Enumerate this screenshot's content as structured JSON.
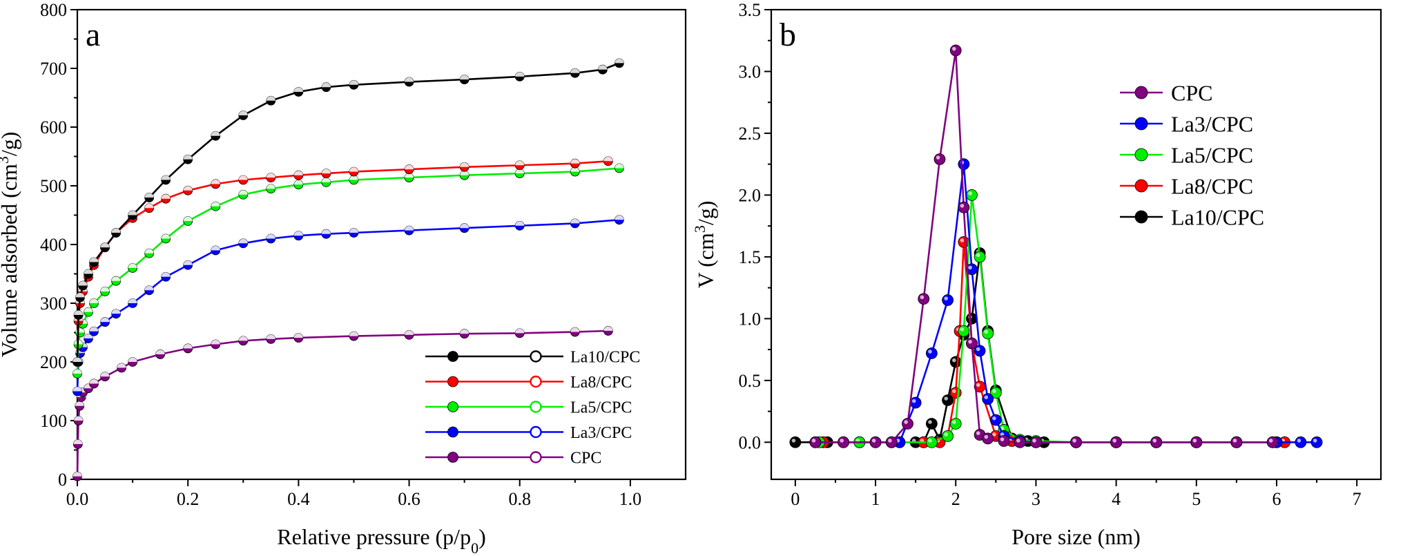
{
  "chart_data": [
    {
      "type": "line",
      "panel_label": "a",
      "xlabel": "Relative pressure (p/p0)",
      "xlabel_parts": [
        "Relative pressure (p/p",
        "0",
        ")"
      ],
      "ylabel": "Volume adsorbed (cm3/g)",
      "ylabel_parts": [
        "Volume adsorbed (cm",
        "3",
        "/g)"
      ],
      "xlim": [
        0,
        1.1
      ],
      "ylim": [
        0,
        800
      ],
      "xticks": [
        "0.0",
        "0.2",
        "0.4",
        "0.6",
        "0.8",
        "1.0"
      ],
      "yticks": [
        "0",
        "100",
        "200",
        "300",
        "400",
        "500",
        "600",
        "700",
        "800"
      ],
      "grid": false,
      "legend_position": "bottom-right",
      "legend": [
        "La10/CPC",
        "La8/CPC",
        "La5/CPC",
        "La3/CPC",
        "CPC"
      ],
      "series": [
        {
          "name": "La10/CPC",
          "color": "#000000",
          "x": [
            0.0,
            0.002,
            0.005,
            0.01,
            0.02,
            0.03,
            0.05,
            0.07,
            0.1,
            0.13,
            0.16,
            0.2,
            0.25,
            0.3,
            0.35,
            0.4,
            0.45,
            0.5,
            0.6,
            0.7,
            0.8,
            0.9,
            0.95,
            0.98
          ],
          "y": [
            200,
            280,
            310,
            330,
            350,
            370,
            395,
            420,
            450,
            480,
            510,
            545,
            585,
            620,
            645,
            660,
            668,
            672,
            677,
            681,
            686,
            692,
            698,
            709
          ]
        },
        {
          "name": "La8/CPC",
          "color": "#ff0000",
          "x": [
            0.0,
            0.002,
            0.005,
            0.01,
            0.02,
            0.03,
            0.05,
            0.07,
            0.1,
            0.13,
            0.16,
            0.2,
            0.25,
            0.3,
            0.35,
            0.4,
            0.45,
            0.5,
            0.6,
            0.7,
            0.8,
            0.9,
            0.96
          ],
          "y": [
            200,
            270,
            300,
            320,
            345,
            365,
            395,
            420,
            445,
            462,
            478,
            492,
            503,
            510,
            514,
            518,
            521,
            524,
            528,
            532,
            535,
            538,
            542
          ]
        },
        {
          "name": "La5/CPC",
          "color": "#00ee00",
          "x": [
            0.0,
            0.002,
            0.005,
            0.01,
            0.02,
            0.03,
            0.05,
            0.07,
            0.1,
            0.13,
            0.16,
            0.2,
            0.25,
            0.3,
            0.35,
            0.4,
            0.45,
            0.5,
            0.6,
            0.7,
            0.8,
            0.9,
            0.98
          ],
          "y": [
            180,
            230,
            250,
            265,
            285,
            300,
            320,
            338,
            360,
            385,
            410,
            440,
            465,
            485,
            495,
            502,
            506,
            510,
            514,
            518,
            521,
            524,
            530
          ]
        },
        {
          "name": "La3/CPC",
          "color": "#0000ff",
          "x": [
            0.0,
            0.002,
            0.005,
            0.01,
            0.02,
            0.03,
            0.05,
            0.07,
            0.1,
            0.13,
            0.16,
            0.2,
            0.25,
            0.3,
            0.35,
            0.4,
            0.45,
            0.5,
            0.6,
            0.7,
            0.8,
            0.9,
            0.98
          ],
          "y": [
            150,
            200,
            215,
            225,
            240,
            252,
            268,
            282,
            300,
            322,
            345,
            365,
            390,
            402,
            410,
            415,
            418,
            420,
            424,
            428,
            432,
            436,
            442
          ]
        },
        {
          "name": "CPC",
          "color": "#800080",
          "x": [
            0.0,
            0.001,
            0.002,
            0.004,
            0.007,
            0.01,
            0.02,
            0.03,
            0.05,
            0.08,
            0.1,
            0.15,
            0.2,
            0.25,
            0.3,
            0.35,
            0.4,
            0.5,
            0.6,
            0.7,
            0.8,
            0.9,
            0.96
          ],
          "y": [
            5,
            60,
            100,
            125,
            140,
            148,
            155,
            163,
            175,
            190,
            200,
            213,
            223,
            230,
            236,
            239,
            241,
            244,
            246,
            248,
            249,
            251,
            253
          ]
        }
      ]
    },
    {
      "type": "line",
      "panel_label": "b",
      "xlabel": "Pore size (nm)",
      "ylabel": "V (cm3/g)",
      "ylabel_parts": [
        "V (cm",
        "3",
        "/g)"
      ],
      "xlim": [
        -0.3,
        7.3
      ],
      "ylim": [
        -0.3,
        3.5
      ],
      "xticks": [
        "0",
        "1",
        "2",
        "3",
        "4",
        "5",
        "6",
        "7"
      ],
      "yticks": [
        "0.0",
        "0.5",
        "1.0",
        "1.5",
        "2.0",
        "2.5",
        "3.0",
        "3.5"
      ],
      "grid": false,
      "legend_position": "top-right",
      "legend": [
        "CPC",
        "La3/CPC",
        "La5/CPC",
        "La8/CPC",
        "La10/CPC"
      ],
      "series": [
        {
          "name": "CPC",
          "color": "#800080",
          "x": [
            0.25,
            0.6,
            1.0,
            1.2,
            1.4,
            1.6,
            1.8,
            2.0,
            2.1,
            2.2,
            2.3,
            2.4,
            2.6,
            2.8,
            3.0,
            3.5,
            4.0,
            4.5,
            5.0,
            5.5,
            5.95
          ],
          "y": [
            0,
            0,
            0,
            0,
            0.15,
            1.16,
            2.29,
            3.17,
            1.9,
            0.8,
            0.06,
            0.03,
            0.01,
            0,
            0,
            0,
            0,
            0,
            0,
            0,
            0
          ]
        },
        {
          "name": "La3/CPC",
          "color": "#0000ff",
          "x": [
            0.25,
            0.6,
            1.0,
            1.3,
            1.5,
            1.7,
            1.9,
            2.1,
            2.2,
            2.3,
            2.4,
            2.5,
            2.6,
            2.8,
            3.0,
            3.5,
            4.0,
            4.5,
            5.0,
            5.5,
            6.0,
            6.3,
            6.5
          ],
          "y": [
            0,
            0,
            0,
            0,
            0.32,
            0.72,
            1.15,
            2.25,
            1.4,
            0.74,
            0.35,
            0.18,
            0.05,
            0.01,
            0,
            0,
            0,
            0,
            0,
            0,
            0,
            0,
            0
          ]
        },
        {
          "name": "La5/CPC",
          "color": "#00ee00",
          "x": [
            0.3,
            0.8,
            1.3,
            1.7,
            1.9,
            2.0,
            2.1,
            2.2,
            2.3,
            2.4,
            2.5,
            2.6,
            2.8,
            3.0,
            3.5,
            4.0,
            4.5,
            5.0,
            5.5,
            6.0
          ],
          "y": [
            0,
            0,
            0,
            0,
            0.05,
            0.15,
            0.9,
            2.0,
            1.5,
            0.88,
            0.4,
            0.1,
            0.02,
            0.01,
            0,
            0,
            0,
            0,
            0,
            0
          ]
        },
        {
          "name": "La8/CPC",
          "color": "#ff0000",
          "x": [
            0.35,
            0.8,
            1.2,
            1.6,
            1.8,
            1.9,
            2.0,
            2.05,
            2.1,
            2.2,
            2.3,
            2.5,
            2.7,
            3.0,
            3.5,
            4.0,
            4.5,
            5.0,
            5.5,
            6.1
          ],
          "y": [
            0,
            0,
            0,
            0,
            0,
            0.05,
            0.4,
            0.9,
            1.62,
            0.8,
            0.45,
            0.05,
            0.01,
            0,
            0,
            0,
            0,
            0,
            0,
            0
          ]
        },
        {
          "name": "La10/CPC",
          "color": "#000000",
          "x": [
            0.0,
            0.4,
            0.8,
            1.2,
            1.5,
            1.6,
            1.7,
            1.8,
            1.9,
            2.0,
            2.1,
            2.2,
            2.3,
            2.4,
            2.5,
            2.7,
            2.9,
            3.1,
            3.5,
            4.0,
            4.5,
            5.0,
            5.5,
            5.95
          ],
          "y": [
            0,
            0,
            0,
            0,
            0,
            0,
            0.15,
            0.02,
            0.34,
            0.65,
            0.87,
            1.0,
            1.53,
            0.9,
            0.42,
            0.03,
            0.01,
            0,
            0,
            0,
            0,
            0,
            0,
            0
          ]
        }
      ]
    }
  ]
}
